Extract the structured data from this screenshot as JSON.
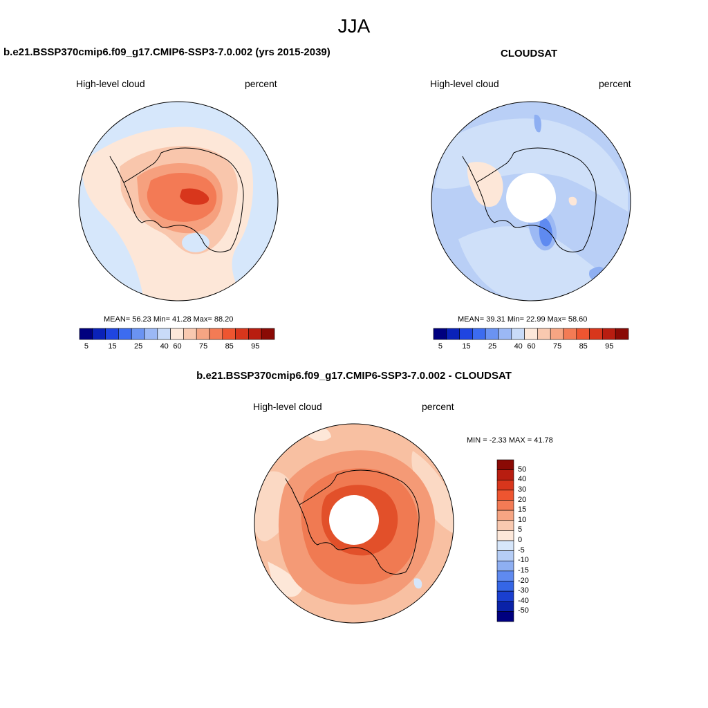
{
  "figure": {
    "season": "JJA"
  },
  "panels": [
    {
      "title": "b.e21.BSSP370cmip6.f09_g17.CMIP6-SSP3-7.0.002 (yrs 2015-2039)",
      "left_label": "High-level cloud",
      "right_label": "percent",
      "stats": "MEAN=  56.23  Min=  41.28  Max=  88.20",
      "colorbar_ticks": [
        "5",
        "15",
        "25",
        "40",
        "60",
        "75",
        "85",
        "95"
      ]
    },
    {
      "title": "CLOUDSAT",
      "left_label": "High-level cloud",
      "right_label": "percent",
      "stats": "MEAN=  39.31  Min=  22.99  Max=  58.60",
      "colorbar_ticks": [
        "5",
        "15",
        "25",
        "40",
        "60",
        "75",
        "85",
        "95"
      ]
    },
    {
      "title": "b.e21.BSSP370cmip6.f09_g17.CMIP6-SSP3-7.0.002 - CLOUDSAT",
      "left_label": "High-level cloud",
      "right_label": "percent",
      "stats": "MIN =  -2.33 MAX =  41.78",
      "colorbar_ticks": [
        "50",
        "40",
        "30",
        "20",
        "15",
        "10",
        "5",
        "0",
        "-5",
        "-10",
        "-15",
        "-20",
        "-30",
        "-40",
        "-50"
      ]
    }
  ],
  "colormaps": {
    "abs": [
      "#00007f",
      "#0a22b8",
      "#1f45e0",
      "#3c6cf0",
      "#6a93f2",
      "#9bb8f5",
      "#c9dbf8",
      "#fde8da",
      "#f9c9b0",
      "#f6a583",
      "#f37b55",
      "#ee5530",
      "#d8361c",
      "#b81d10",
      "#8a0a05"
    ],
    "diff": [
      "#8a0a05",
      "#b81d10",
      "#d8361c",
      "#ee5530",
      "#f37b55",
      "#f6a583",
      "#f9c9b0",
      "#fde8da",
      "#d6e6fa",
      "#b5cdf6",
      "#8eaff2",
      "#5f8af0",
      "#3566e6",
      "#1a3fd0",
      "#0a22a8",
      "#00007f"
    ]
  },
  "map_fields": {
    "model_bg": "#d8e8fb",
    "cloudsat_bg": "#b7cdf5",
    "diff_bg": "#f9c3a6"
  }
}
